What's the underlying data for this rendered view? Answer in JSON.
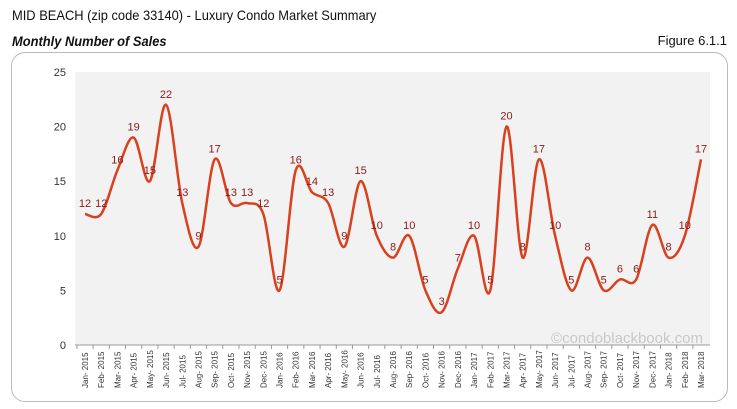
{
  "header": {
    "title": "MID BEACH (zip code 33140) - Luxury Condo Market Summary",
    "subtitle": "Monthly Number of Sales",
    "figure": "Figure 6.1.1"
  },
  "watermark": "©condoblackbook.com",
  "chart_data": {
    "type": "line",
    "title": "Monthly Number of Sales",
    "xlabel": "",
    "ylabel": "",
    "ylim": [
      0,
      25
    ],
    "yticks": [
      0,
      5,
      10,
      15,
      20,
      25
    ],
    "grid": false,
    "line_color": "#d9411e",
    "label_color": "#8b1a1a",
    "categories": [
      "Jan-2015",
      "Feb-2015",
      "Mar-2015",
      "Apr-2015",
      "May-2015",
      "Jun-2015",
      "Jul-2015",
      "Aug-2015",
      "Sep-2015",
      "Oct-2015",
      "Nov-2015",
      "Dec-2015",
      "Jan-2016",
      "Feb-2016",
      "Mar-2016",
      "Apr-2016",
      "May-2016",
      "Jun-2016",
      "Jul-2016",
      "Aug-2016",
      "Sep-2016",
      "Oct-2016",
      "Nov-2016",
      "Dec-2016",
      "Jan-2017",
      "Feb-2017",
      "Mar-2017",
      "Apr-2017",
      "May-2017",
      "Jun-2017",
      "Jul-2017",
      "Aug-2017",
      "Sep-2017",
      "Oct-2017",
      "Nov-2017",
      "Dec-2017",
      "Jan-2018",
      "Feb-2018",
      "Mar-2018"
    ],
    "values": [
      12,
      12,
      16,
      19,
      15,
      22,
      13,
      9,
      17,
      13,
      13,
      12,
      5,
      16,
      14,
      13,
      9,
      15,
      10,
      8,
      10,
      5,
      3,
      7,
      10,
      5,
      20,
      8,
      17,
      10,
      5,
      8,
      5,
      6,
      6,
      11,
      8,
      10,
      17
    ]
  }
}
